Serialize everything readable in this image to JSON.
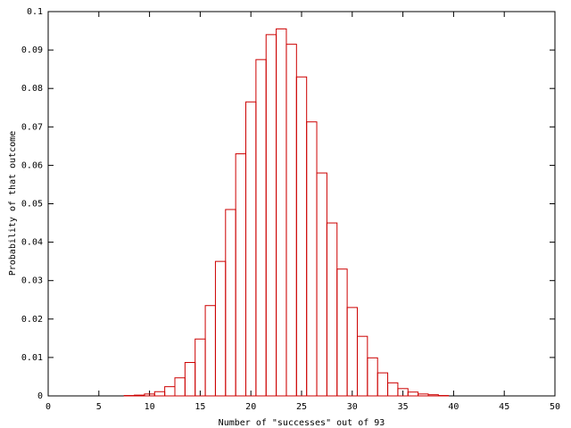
{
  "chart_data": {
    "type": "bar",
    "ylabel": "Probability of that outcome",
    "xlabel": "Number of \"successes\" out of 93",
    "x": [
      0,
      1,
      2,
      3,
      4,
      5,
      6,
      7,
      8,
      9,
      10,
      11,
      12,
      13,
      14,
      15,
      16,
      17,
      18,
      19,
      20,
      21,
      22,
      23,
      24,
      25,
      26,
      27,
      28,
      29,
      30,
      31,
      32,
      33,
      34,
      35,
      36,
      37,
      38,
      39,
      40,
      41,
      42,
      43,
      44,
      45,
      46,
      47
    ],
    "values": [
      0,
      0,
      0,
      0,
      0,
      0,
      0,
      0,
      0.0001,
      0.0002,
      0.0005,
      0.0011,
      0.0024,
      0.0047,
      0.0087,
      0.0148,
      0.0235,
      0.035,
      0.0485,
      0.063,
      0.0765,
      0.0875,
      0.094,
      0.0955,
      0.0915,
      0.083,
      0.0713,
      0.058,
      0.045,
      0.033,
      0.023,
      0.0155,
      0.0099,
      0.006,
      0.0034,
      0.0019,
      0.001,
      0.0005,
      0.0003,
      0.0001,
      0,
      0,
      0,
      0,
      0,
      0,
      0,
      0
    ],
    "color": "#cc0000",
    "xlim": [
      0,
      50
    ],
    "xticks": [
      0,
      5,
      10,
      15,
      20,
      25,
      30,
      35,
      40,
      45,
      50
    ],
    "ylim": [
      0,
      0.1
    ],
    "yticks": [
      0,
      0.01,
      0.02,
      0.03,
      0.04,
      0.05,
      0.06,
      0.07,
      0.08,
      0.09,
      0.1
    ]
  }
}
